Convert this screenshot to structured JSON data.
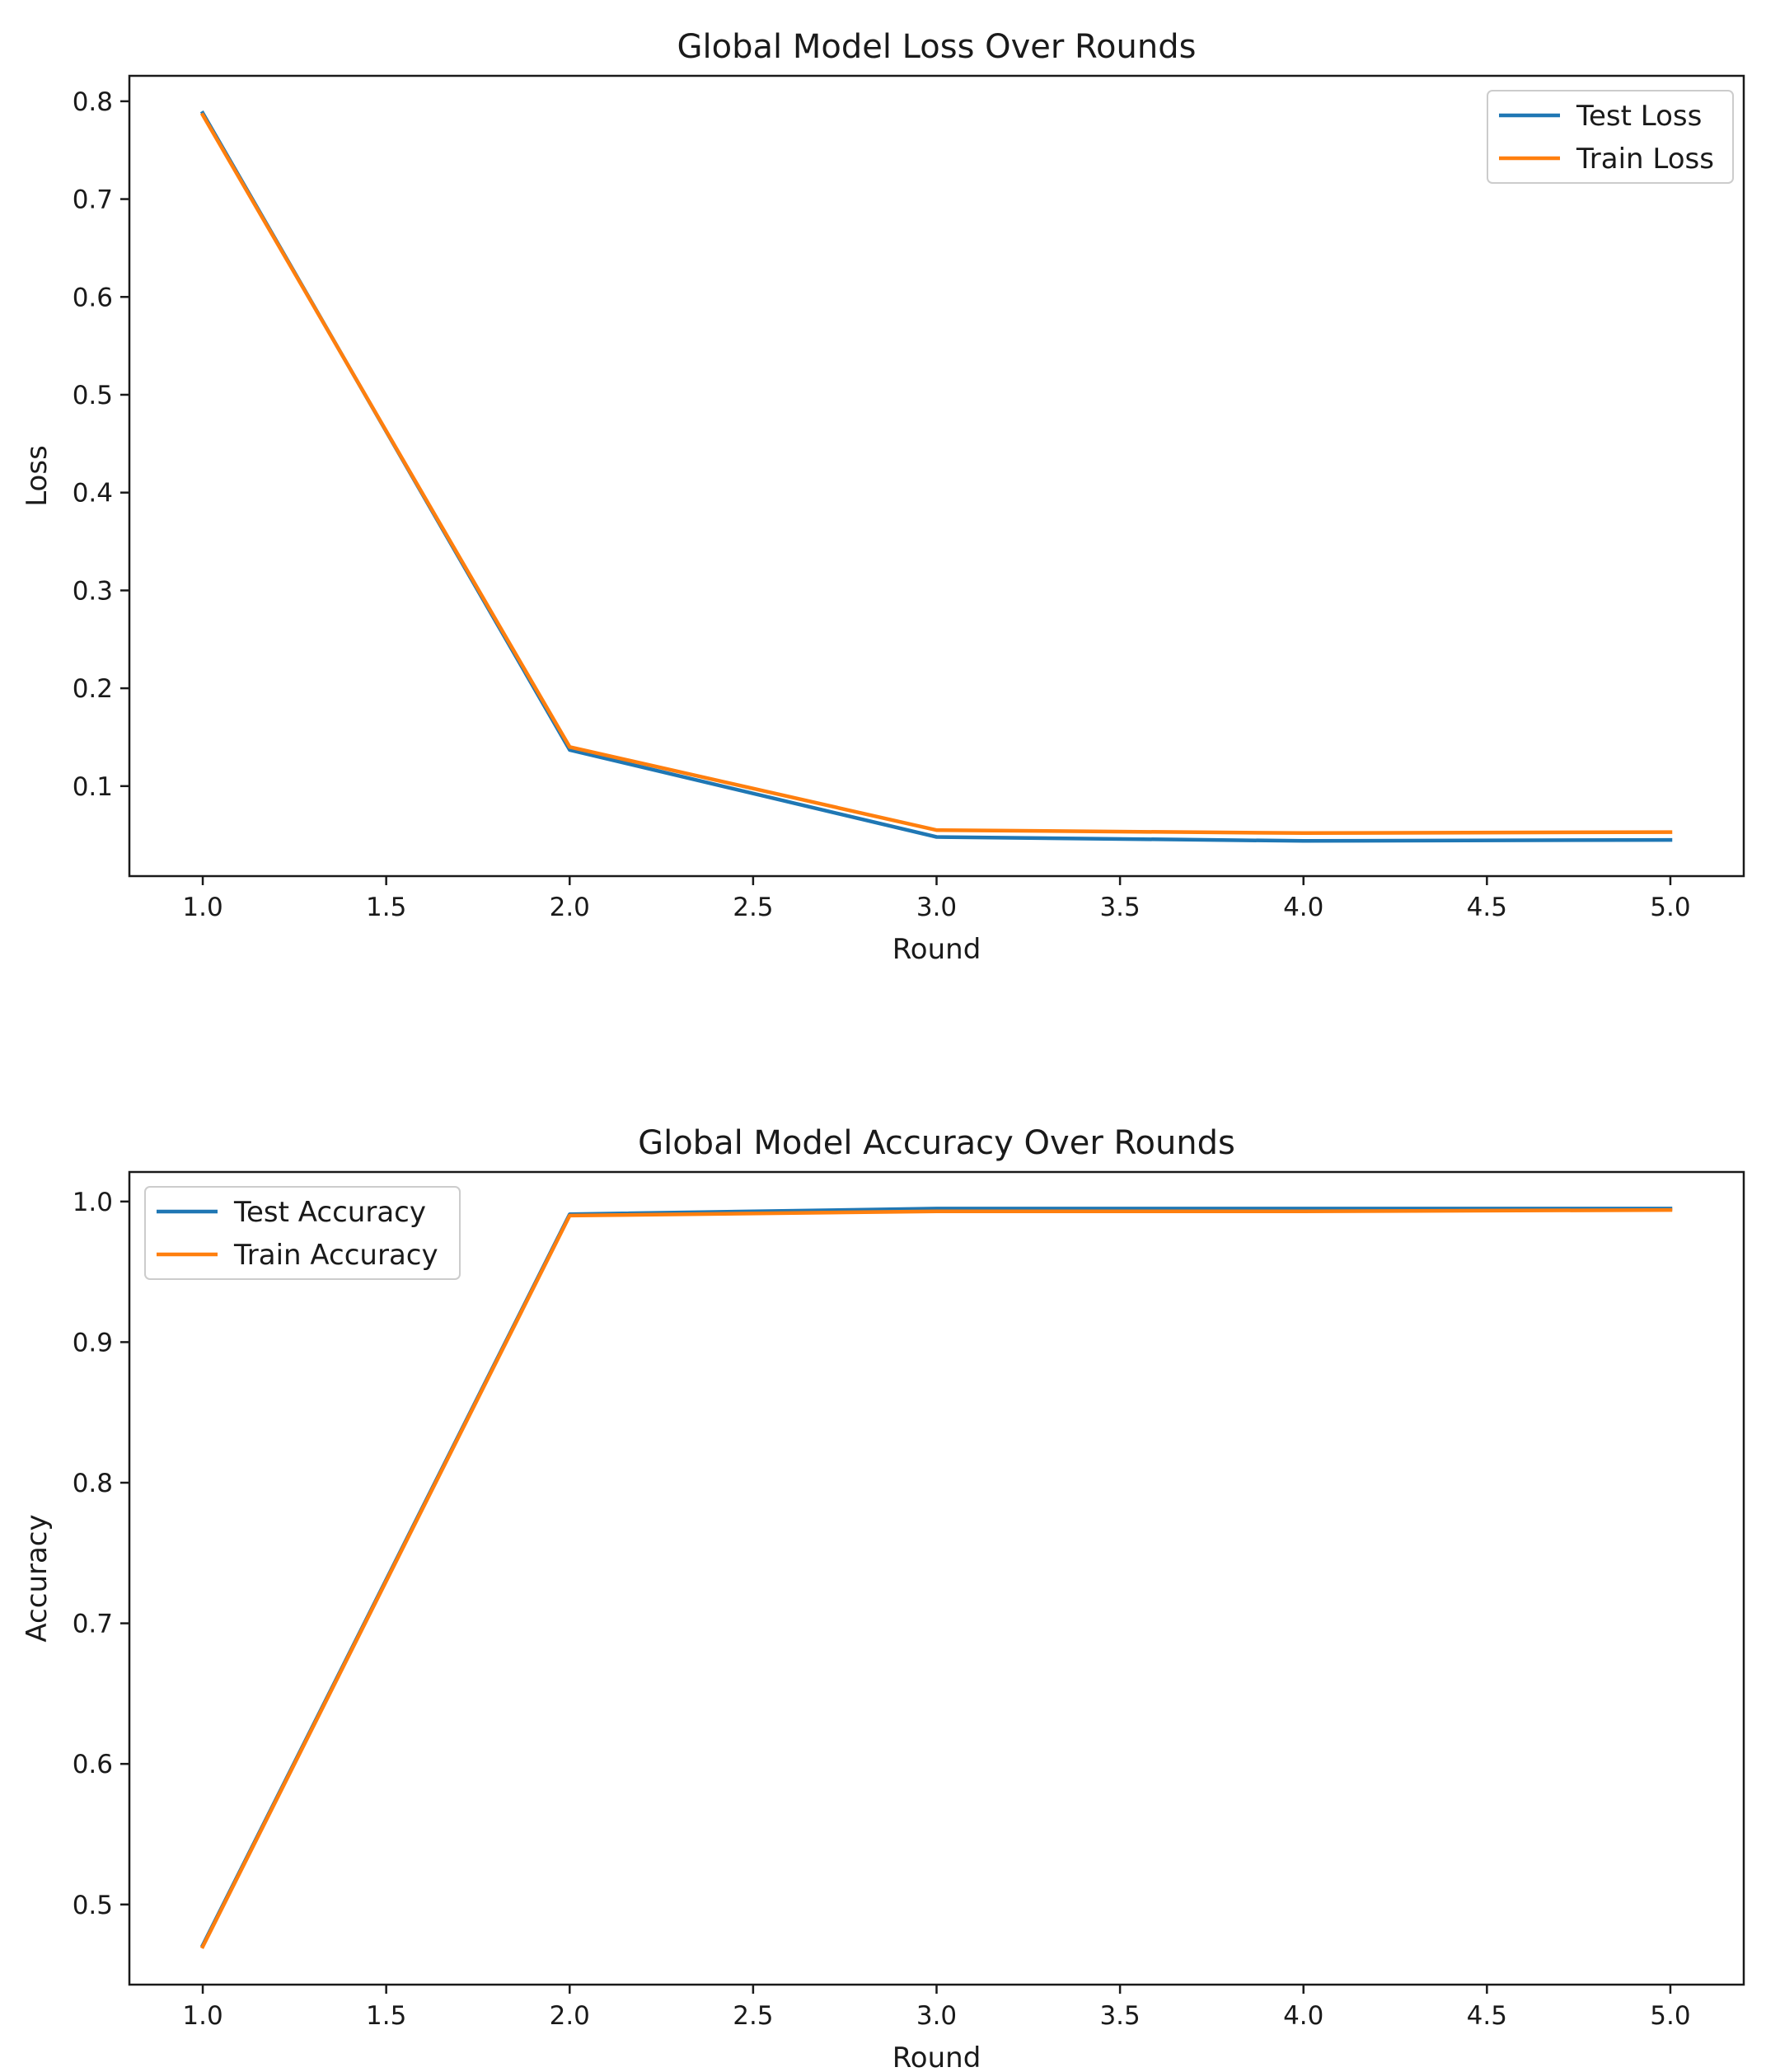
{
  "chart_data": [
    {
      "type": "line",
      "title": "Global Model Loss Over Rounds",
      "xlabel": "Round",
      "ylabel": "Loss",
      "x": [
        1.0,
        2.0,
        3.0,
        4.0,
        5.0
      ],
      "xlim": [
        0.8,
        5.2
      ],
      "ylim": [
        0.008,
        0.826
      ],
      "xticks": [
        1.0,
        1.5,
        2.0,
        2.5,
        3.0,
        3.5,
        4.0,
        4.5,
        5.0
      ],
      "xtick_labels": [
        "1.0",
        "1.5",
        "2.0",
        "2.5",
        "3.0",
        "3.5",
        "4.0",
        "4.5",
        "5.0"
      ],
      "yticks": [
        0.1,
        0.2,
        0.3,
        0.4,
        0.5,
        0.6,
        0.7,
        0.8
      ],
      "ytick_labels": [
        "0.1",
        "0.2",
        "0.3",
        "0.4",
        "0.5",
        "0.6",
        "0.7",
        "0.8"
      ],
      "legend_position": "top-right",
      "grid": false,
      "series": [
        {
          "name": "Test Loss",
          "color": "#1f77b4",
          "values": [
            0.788,
            0.137,
            0.048,
            0.044,
            0.045
          ]
        },
        {
          "name": "Train Loss",
          "color": "#ff7f0e",
          "values": [
            0.786,
            0.14,
            0.055,
            0.052,
            0.053
          ]
        }
      ]
    },
    {
      "type": "line",
      "title": "Global Model Accuracy Over Rounds",
      "xlabel": "Round",
      "ylabel": "Accuracy",
      "x": [
        1.0,
        2.0,
        3.0,
        4.0,
        5.0
      ],
      "xlim": [
        0.8,
        5.2
      ],
      "ylim": [
        0.443,
        1.021
      ],
      "xticks": [
        1.0,
        1.5,
        2.0,
        2.5,
        3.0,
        3.5,
        4.0,
        4.5,
        5.0
      ],
      "xtick_labels": [
        "1.0",
        "1.5",
        "2.0",
        "2.5",
        "3.0",
        "3.5",
        "4.0",
        "4.5",
        "5.0"
      ],
      "yticks": [
        0.5,
        0.6,
        0.7,
        0.8,
        0.9,
        1.0
      ],
      "ytick_labels": [
        "0.5",
        "0.6",
        "0.7",
        "0.8",
        "0.9",
        "1.0"
      ],
      "legend_position": "top-left",
      "grid": false,
      "series": [
        {
          "name": "Test Accuracy",
          "color": "#1f77b4",
          "values": [
            0.471,
            0.991,
            0.995,
            0.995,
            0.995
          ]
        },
        {
          "name": "Train Accuracy",
          "color": "#ff7f0e",
          "values": [
            0.47,
            0.99,
            0.993,
            0.993,
            0.994
          ]
        }
      ]
    }
  ]
}
